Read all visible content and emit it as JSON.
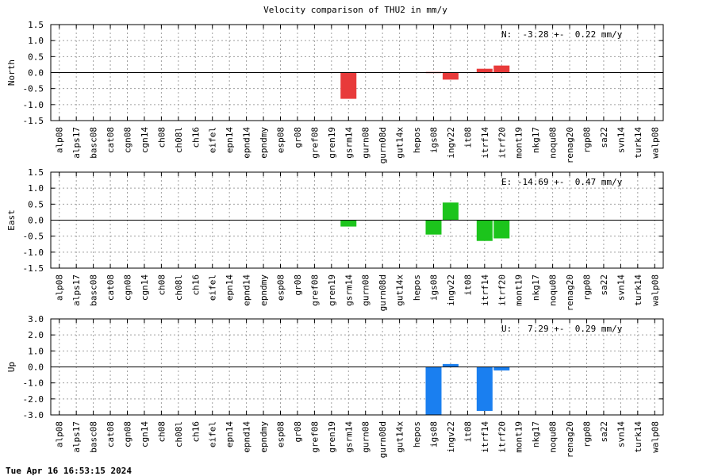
{
  "title": "Velocity comparison of THU2 in mm/y",
  "timestamp": "Tue Apr 16 16:53:15 2024",
  "chart_data": {
    "type": "bar",
    "categories": [
      "alp08",
      "alps17",
      "basc08",
      "cat08",
      "cgn08",
      "cgn14",
      "ch08",
      "ch08l",
      "ch16",
      "eifel",
      "epn14",
      "epnd14",
      "epndmy",
      "esp08",
      "gr08",
      "gref08",
      "gren19",
      "gsrm14",
      "gurn08",
      "gurn08d",
      "gut14x",
      "hepos",
      "igs08",
      "ingv22",
      "it08",
      "itrf14",
      "itrf20",
      "mont19",
      "nkg17",
      "noqu08",
      "renag20",
      "rgp08",
      "sa22",
      "svn14",
      "turk14",
      "walp08"
    ],
    "panels": [
      {
        "ylabel": "North",
        "annotation": "N:  -3.28 +-  0.22 mm/y",
        "color": "#e83a3a",
        "ylim": [
          -1.5,
          1.5
        ],
        "yticks": [
          "1.5",
          "1.0",
          "0.5",
          "0.0",
          "-0.5",
          "-1.0",
          "-1.5"
        ],
        "yticks_values": [
          1.5,
          1.0,
          0.5,
          0.0,
          -0.5,
          -1.0,
          -1.5
        ],
        "values": [
          null,
          null,
          null,
          null,
          null,
          null,
          null,
          null,
          null,
          null,
          null,
          null,
          null,
          null,
          null,
          null,
          null,
          -0.82,
          null,
          null,
          null,
          null,
          0.02,
          -0.22,
          null,
          0.12,
          0.22,
          null,
          null,
          null,
          null,
          null,
          null,
          null,
          null,
          null
        ]
      },
      {
        "ylabel": "East",
        "annotation": "E: -14.69 +-  0.47 mm/y",
        "color": "#1cc41c",
        "ylim": [
          -1.5,
          1.5
        ],
        "yticks": [
          "1.5",
          "1.0",
          "0.5",
          "0.0",
          "-0.5",
          "-1.0",
          "-1.5"
        ],
        "yticks_values": [
          1.5,
          1.0,
          0.5,
          0.0,
          -0.5,
          -1.0,
          -1.5
        ],
        "values": [
          null,
          null,
          null,
          null,
          null,
          null,
          null,
          null,
          null,
          null,
          null,
          null,
          null,
          null,
          null,
          null,
          null,
          -0.2,
          null,
          null,
          null,
          null,
          -0.45,
          0.55,
          null,
          -0.65,
          -0.57,
          null,
          null,
          null,
          null,
          null,
          null,
          null,
          null,
          null
        ]
      },
      {
        "ylabel": "Up",
        "annotation": "U:   7.29 +-  0.29 mm/y",
        "color": "#1a7ff0",
        "ylim": [
          -3.0,
          3.0
        ],
        "yticks": [
          "3.0",
          "2.0",
          "1.0",
          "0.0",
          "-1.0",
          "-2.0",
          "-3.0"
        ],
        "yticks_values": [
          3.0,
          2.0,
          1.0,
          0.0,
          -1.0,
          -2.0,
          -3.0
        ],
        "values": [
          null,
          null,
          null,
          null,
          null,
          null,
          null,
          null,
          null,
          null,
          null,
          null,
          null,
          null,
          null,
          null,
          null,
          null,
          null,
          null,
          null,
          null,
          -3.0,
          0.18,
          null,
          -2.75,
          -0.22,
          null,
          null,
          null,
          null,
          null,
          null,
          null,
          null,
          null
        ]
      }
    ]
  }
}
